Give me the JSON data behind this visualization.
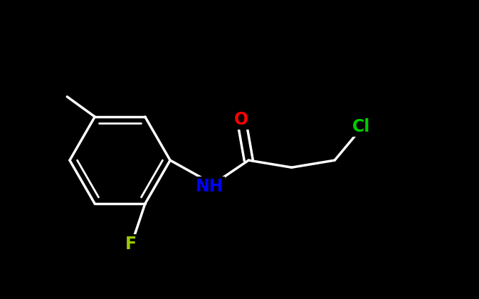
{
  "bg_color": "#000000",
  "bond_color": "#ffffff",
  "bond_width": 2.5,
  "atom_colors": {
    "O": "#ff0000",
    "N": "#0000ff",
    "Cl": "#00cc00",
    "F": "#99cc00",
    "C": "#ffffff"
  },
  "font_size_atom": 18,
  "font_size_label": 16
}
